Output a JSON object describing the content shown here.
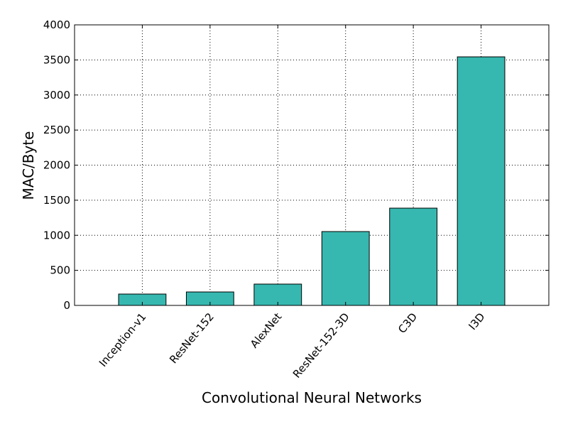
{
  "chart_data": {
    "type": "bar",
    "x_label": "Convolutional Neural Networks",
    "y_label": "MAC/Byte",
    "categories": [
      "Inception-v1",
      "ResNet-152",
      "AlexNet",
      "ResNet-152-3D",
      "C3D",
      "I3D"
    ],
    "values": [
      162,
      192,
      304,
      1053,
      1387,
      3544
    ],
    "color": "#36b8b0",
    "ylim": [
      0,
      4000
    ],
    "yticks": [
      0,
      500,
      1000,
      1500,
      2000,
      2500,
      3000,
      3500,
      4000
    ],
    "grid": true
  }
}
